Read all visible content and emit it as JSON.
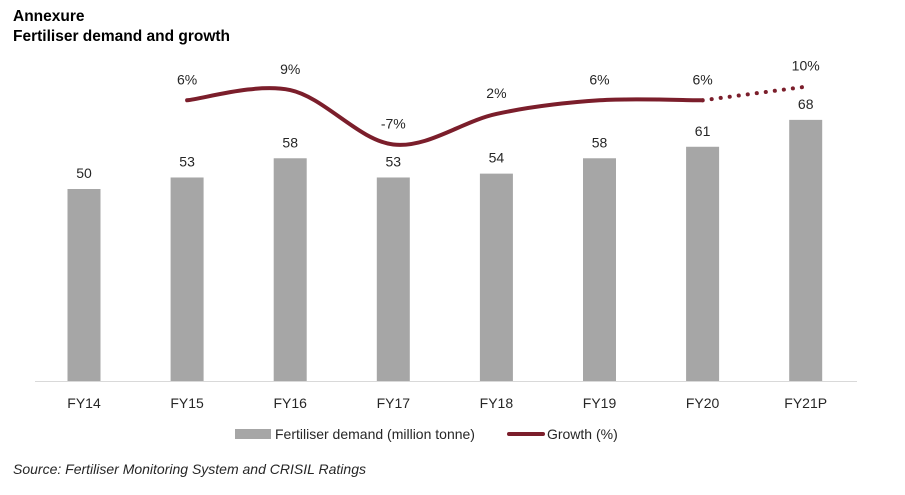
{
  "header": {
    "title": "Annexure",
    "subtitle": "Fertiliser demand and growth"
  },
  "source": "Source: Fertiliser Monitoring System and CRISIL Ratings",
  "colors": {
    "bar": "#a6a6a6",
    "line": "#7b1e2b",
    "axis": "#d9d9d9"
  },
  "chart_data": {
    "type": "bar",
    "title": "Fertiliser demand and growth",
    "categories": [
      "FY14",
      "FY15",
      "FY16",
      "FY17",
      "FY18",
      "FY19",
      "FY20",
      "FY21P"
    ],
    "series": [
      {
        "name": "Fertiliser demand (million tonne)",
        "type": "bar",
        "values": [
          50,
          53,
          58,
          53,
          54,
          58,
          61,
          68
        ],
        "labels": [
          "50",
          "53",
          "58",
          "53",
          "54",
          "58",
          "61",
          "68"
        ]
      },
      {
        "name": "Growth (%)",
        "type": "line",
        "values": [
          null,
          6,
          9,
          -7,
          2,
          6,
          6,
          10
        ],
        "labels": [
          "",
          "6%",
          "9%",
          "-7%",
          "2%",
          "6%",
          "6%",
          "10%"
        ],
        "projected_from_index": 6
      }
    ],
    "legend": [
      "Fertiliser demand (million tonne)",
      "Growth (%)"
    ],
    "legend_position": "bottom",
    "xlabel": "",
    "ylabel": "",
    "grid": false
  }
}
